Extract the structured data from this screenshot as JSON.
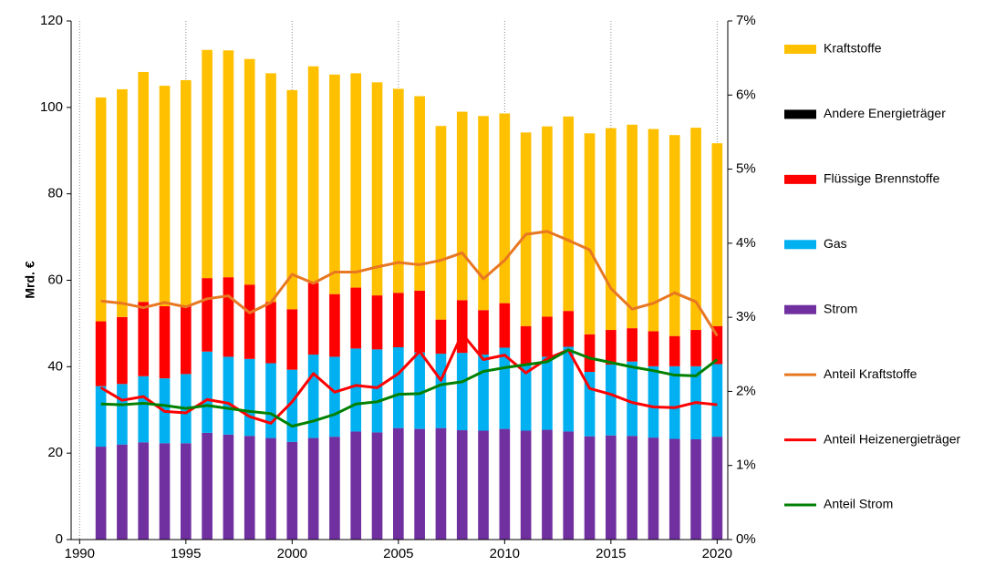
{
  "chart_data": {
    "type": "bar",
    "y_label": "Mrd. €",
    "x": [
      1991,
      1992,
      1993,
      1994,
      1995,
      1996,
      1997,
      1998,
      1999,
      2000,
      2001,
      2002,
      2003,
      2004,
      2005,
      2006,
      2007,
      2008,
      2009,
      2010,
      2011,
      2012,
      2013,
      2014,
      2015,
      2016,
      2017,
      2018,
      2019,
      2020
    ],
    "xlim": [
      1989.6,
      2020.5
    ],
    "xticks": [
      1990,
      1995,
      2000,
      2005,
      2010,
      2015,
      2020
    ],
    "ylim": [
      0,
      120
    ],
    "yticks": [
      0,
      20,
      40,
      60,
      80,
      100,
      120
    ],
    "y2lim": [
      0,
      7
    ],
    "y2ticks": [
      {
        "value": 0,
        "label": "0%"
      },
      {
        "value": 1,
        "label": "1%"
      },
      {
        "value": 2,
        "label": "2%"
      },
      {
        "value": 3,
        "label": "3%"
      },
      {
        "value": 4,
        "label": "4%"
      },
      {
        "value": 5,
        "label": "5%"
      },
      {
        "value": 6,
        "label": "6%"
      },
      {
        "value": 7,
        "label": "7%"
      }
    ],
    "grid": "x",
    "stacked": true,
    "legend": "right",
    "series": [
      {
        "name": "Kraftstoffe",
        "type": "bar",
        "color": "#FFC000",
        "values": [
          51.8,
          52.7,
          53.2,
          51,
          52.3,
          52.8,
          52.5,
          52.2,
          52.9,
          50.7,
          50.1,
          50.8,
          49.6,
          49.3,
          47.2,
          45,
          44.8,
          43.6,
          44.9,
          43.9,
          44.8,
          44,
          45,
          46.5,
          46.7,
          47.1,
          46.8,
          46.5,
          46.8,
          42.3
        ]
      },
      {
        "name": "Andere Energieträger",
        "type": "bar",
        "color": "#000000",
        "values": [
          0,
          0,
          0,
          0,
          0,
          0,
          0,
          0,
          0,
          0,
          0,
          0,
          0,
          0,
          0,
          0,
          0,
          0,
          0,
          0,
          0,
          0,
          0,
          0,
          0,
          0,
          0,
          0,
          0,
          0
        ]
      },
      {
        "name": "Flüssige Brennstoffe",
        "type": "bar",
        "color": "#FF0000",
        "values": [
          15,
          15.5,
          17.2,
          16.7,
          15.7,
          17,
          18.4,
          17.2,
          14.2,
          14,
          16.6,
          14.5,
          14.1,
          12.5,
          12.6,
          14.3,
          7.9,
          12.2,
          10.3,
          10.3,
          8.7,
          9.3,
          8.3,
          8.7,
          8,
          7.7,
          8.1,
          7,
          8.4,
          8.8
        ]
      },
      {
        "name": "Gas",
        "type": "bar",
        "color": "#00B0F0",
        "values": [
          14,
          14,
          15.3,
          15,
          16,
          18.8,
          18,
          17.8,
          17.3,
          16.7,
          19.3,
          18.5,
          19.2,
          19.2,
          18.7,
          17.7,
          17.2,
          17.9,
          17.6,
          18.8,
          15.5,
          16.9,
          19.6,
          14.9,
          16.4,
          17.2,
          16.5,
          16.8,
          16.9,
          16.8
        ]
      },
      {
        "name": "Strom",
        "type": "bar",
        "color": "#7030A0",
        "values": [
          21.5,
          22,
          22.5,
          22.3,
          22.3,
          24.7,
          24.3,
          24,
          23.5,
          22.6,
          23.5,
          23.8,
          25,
          24.8,
          25.8,
          25.6,
          25.8,
          25.3,
          25.2,
          25.6,
          25.2,
          25.4,
          25,
          23.9,
          24.1,
          24,
          23.6,
          23.3,
          23.2,
          23.8
        ]
      },
      {
        "name": "Anteil Kraftstoffe",
        "type": "line",
        "axis": "y2",
        "color": "#E87722",
        "values": [
          3.22,
          3.19,
          3.13,
          3.2,
          3.14,
          3.25,
          3.29,
          3.06,
          3.2,
          3.58,
          3.46,
          3.61,
          3.61,
          3.68,
          3.74,
          3.71,
          3.77,
          3.87,
          3.52,
          3.77,
          4.12,
          4.16,
          4.04,
          3.91,
          3.39,
          3.11,
          3.19,
          3.33,
          3.21,
          2.75
        ]
      },
      {
        "name": "Anteil Heizenergieträger",
        "type": "line",
        "axis": "y2",
        "color": "#FF0000",
        "values": [
          2.05,
          1.88,
          1.93,
          1.73,
          1.71,
          1.89,
          1.84,
          1.66,
          1.57,
          1.86,
          2.24,
          1.99,
          2.08,
          2.05,
          2.24,
          2.54,
          2.15,
          2.78,
          2.43,
          2.49,
          2.25,
          2.44,
          2.56,
          2.04,
          1.96,
          1.85,
          1.79,
          1.78,
          1.85,
          1.82
        ]
      },
      {
        "name": "Anteil Strom",
        "type": "line",
        "axis": "y2",
        "color": "#008000",
        "values": [
          1.83,
          1.82,
          1.84,
          1.81,
          1.77,
          1.81,
          1.77,
          1.73,
          1.7,
          1.53,
          1.6,
          1.69,
          1.83,
          1.86,
          1.96,
          1.97,
          2.09,
          2.13,
          2.27,
          2.32,
          2.36,
          2.4,
          2.56,
          2.45,
          2.39,
          2.33,
          2.28,
          2.22,
          2.21,
          2.43
        ]
      }
    ]
  }
}
